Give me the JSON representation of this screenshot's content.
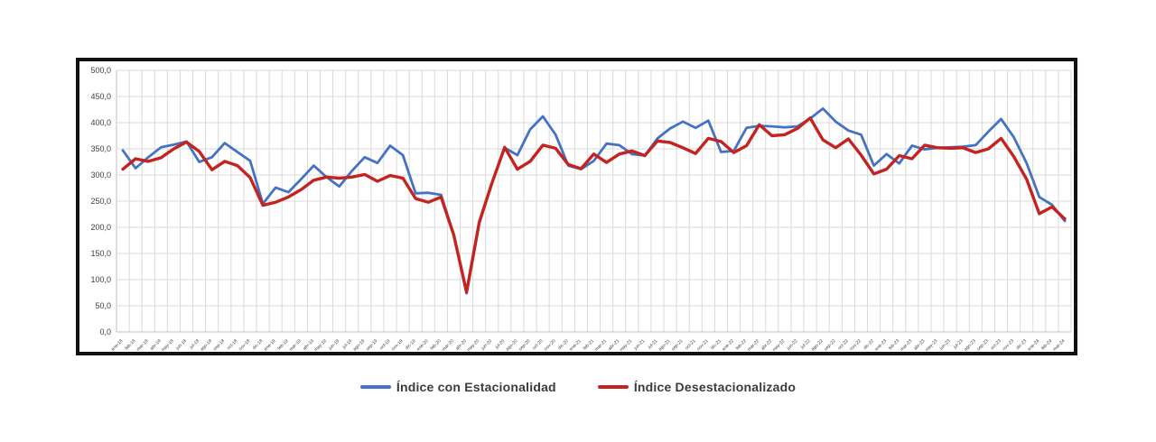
{
  "chart_data": {
    "type": "line",
    "title": "",
    "xlabel": "",
    "ylabel": "",
    "ylim": [
      0,
      500
    ],
    "ytick_step": 50,
    "ytick_labels": [
      "0,0",
      "50,0",
      "100,0",
      "150,0",
      "200,0",
      "250,0",
      "300,0",
      "350,0",
      "400,0",
      "450,0",
      "500,0"
    ],
    "grid": true,
    "legend_position": "bottom",
    "x_labels": [
      "ene-18",
      "feb-18",
      "mar-18",
      "abr-18",
      "may-18",
      "jun-18",
      "jul-18",
      "ago-18",
      "sep-18",
      "oct-18",
      "nov-18",
      "dic-18",
      "ene-19",
      "feb-19",
      "mar-19",
      "abr-19",
      "may-19",
      "jun-19",
      "jul-19",
      "ago-19",
      "sep-19",
      "oct-19",
      "nov-19",
      "dic-19",
      "ene-20",
      "feb-20",
      "mar-20",
      "abr-20",
      "may-20",
      "jun-20",
      "jul-20",
      "ago-20",
      "sep-20",
      "oct-20",
      "nov-20",
      "dic-20",
      "ene-21",
      "feb-21",
      "mar-21",
      "abr-21",
      "may-21",
      "jun-21",
      "jul-21",
      "ago-21",
      "sep-21",
      "oct-21",
      "nov-21",
      "dic-21",
      "ene-22",
      "feb-22",
      "mar-22",
      "abr-22",
      "may-22",
      "jun-22",
      "jul-22",
      "ago-22",
      "sep-22",
      "oct-22",
      "nov-22",
      "dic-22",
      "ene-23",
      "feb-23",
      "mar-23",
      "abr-23",
      "may-23",
      "jun-23",
      "jul-23",
      "ago-23",
      "sep-23",
      "oct-23",
      "nov-23",
      "dic-23",
      "ene-24",
      "feb-24",
      "mar-24"
    ],
    "series": [
      {
        "name": "Índice con Estacionalidad",
        "color": "#4472C4",
        "stroke_width": 2.8,
        "values": [
          347,
          313,
          334,
          353,
          358,
          364,
          325,
          334,
          361,
          344,
          327,
          245,
          276,
          267,
          292,
          318,
          296,
          278,
          308,
          334,
          323,
          356,
          338,
          265,
          266,
          262,
          185,
          74,
          208,
          285,
          352,
          338,
          387,
          412,
          377,
          318,
          311,
          327,
          360,
          357,
          340,
          337,
          370,
          389,
          402,
          390,
          404,
          344,
          346,
          390,
          394,
          393,
          391,
          393,
          408,
          427,
          402,
          385,
          377,
          318,
          340,
          322,
          356,
          349,
          352,
          353,
          354,
          357,
          383,
          407,
          372,
          323,
          258,
          243,
          212
        ]
      },
      {
        "name": "Índice Desestacionalizado",
        "color": "#C42320",
        "stroke_width": 3.4,
        "values": [
          311,
          331,
          326,
          333,
          350,
          363,
          345,
          310,
          326,
          318,
          295,
          242,
          248,
          258,
          272,
          290,
          296,
          294,
          296,
          301,
          288,
          299,
          294,
          255,
          248,
          258,
          185,
          76,
          210,
          285,
          353,
          311,
          326,
          357,
          351,
          320,
          312,
          340,
          324,
          340,
          346,
          337,
          365,
          362,
          352,
          341,
          370,
          364,
          343,
          356,
          396,
          375,
          377,
          389,
          409,
          367,
          352,
          369,
          338,
          302,
          311,
          337,
          331,
          357,
          352,
          351,
          352,
          343,
          350,
          370,
          335,
          292,
          226,
          239,
          216
        ]
      }
    ]
  },
  "style": {
    "grid_color": "#d9d9d9",
    "axis_color": "#bfbfbf",
    "tick_label_color": "#404040"
  }
}
